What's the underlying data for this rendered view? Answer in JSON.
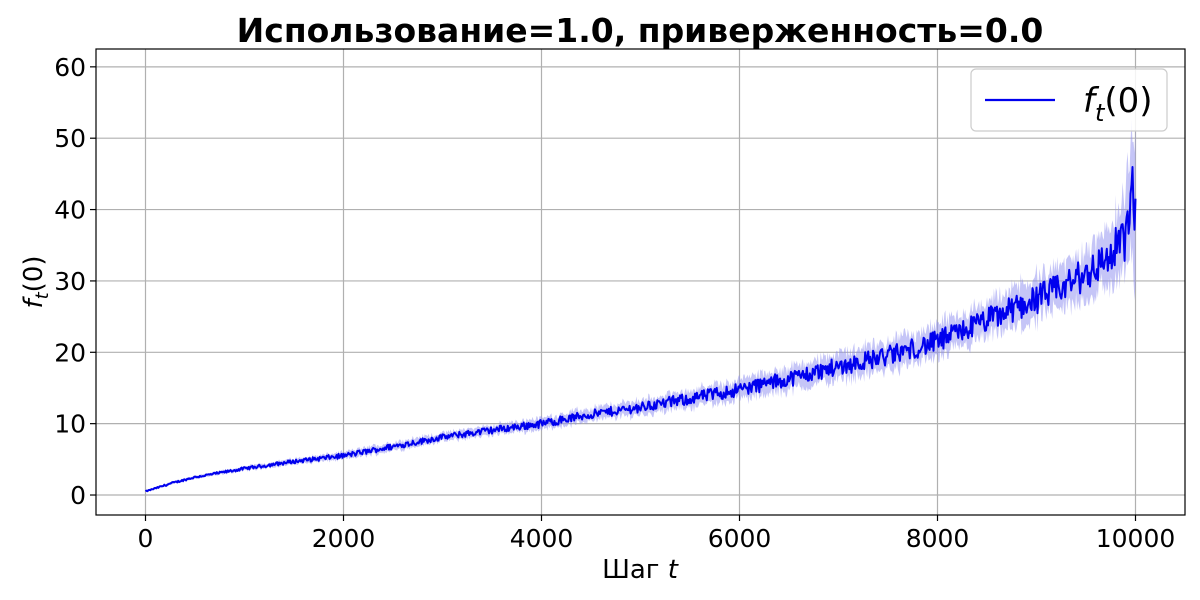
{
  "chart_data": {
    "type": "line",
    "title": "Использование=1.0, приверженность=0.0",
    "xlabel": {
      "text": "Шаг",
      "var": "t"
    },
    "ylabel": {
      "base": "f",
      "sub": "t",
      "suffix": "(0)"
    },
    "xlim": [
      -500,
      10500
    ],
    "ylim": [
      -2.8,
      62.5
    ],
    "xticks": [
      0,
      2000,
      4000,
      6000,
      8000,
      10000
    ],
    "yticks": [
      0,
      10,
      20,
      30,
      40,
      50,
      60
    ],
    "grid": true,
    "legend_position": "top-right",
    "series": [
      {
        "name": {
          "base": "f",
          "sub": "t",
          "suffix": "(0)"
        },
        "color": "#0000ee",
        "band_color": "#8c8cf0",
        "x": [
          0,
          250,
          500,
          1000,
          1500,
          2000,
          2500,
          3000,
          3500,
          4000,
          4500,
          5000,
          5500,
          6000,
          6500,
          7000,
          7500,
          8000,
          8500,
          9000,
          9250,
          9500,
          9750,
          9900,
          10000
        ],
        "y": [
          0.5,
          1.6,
          2.5,
          3.7,
          4.7,
          5.5,
          6.8,
          8.1,
          9.1,
          10.0,
          11.3,
          12.3,
          13.5,
          14.8,
          16.3,
          18.0,
          19.5,
          21.5,
          24.5,
          27.5,
          29.0,
          31.0,
          33.5,
          36.5,
          42.0
        ],
        "lower": [
          0.4,
          1.4,
          2.3,
          3.4,
          4.3,
          5.0,
          6.2,
          7.5,
          8.4,
          9.2,
          10.4,
          11.3,
          12.3,
          13.4,
          14.7,
          16.2,
          17.5,
          19.3,
          22.0,
          24.5,
          26.0,
          27.5,
          29.5,
          31.5,
          32.0
        ],
        "upper": [
          0.6,
          1.8,
          2.7,
          4.0,
          5.1,
          6.0,
          7.4,
          8.7,
          9.8,
          10.8,
          12.2,
          13.3,
          14.7,
          16.2,
          17.9,
          19.8,
          21.5,
          23.7,
          27.0,
          30.5,
          32.0,
          34.5,
          37.5,
          42.0,
          54.0
        ]
      }
    ]
  }
}
